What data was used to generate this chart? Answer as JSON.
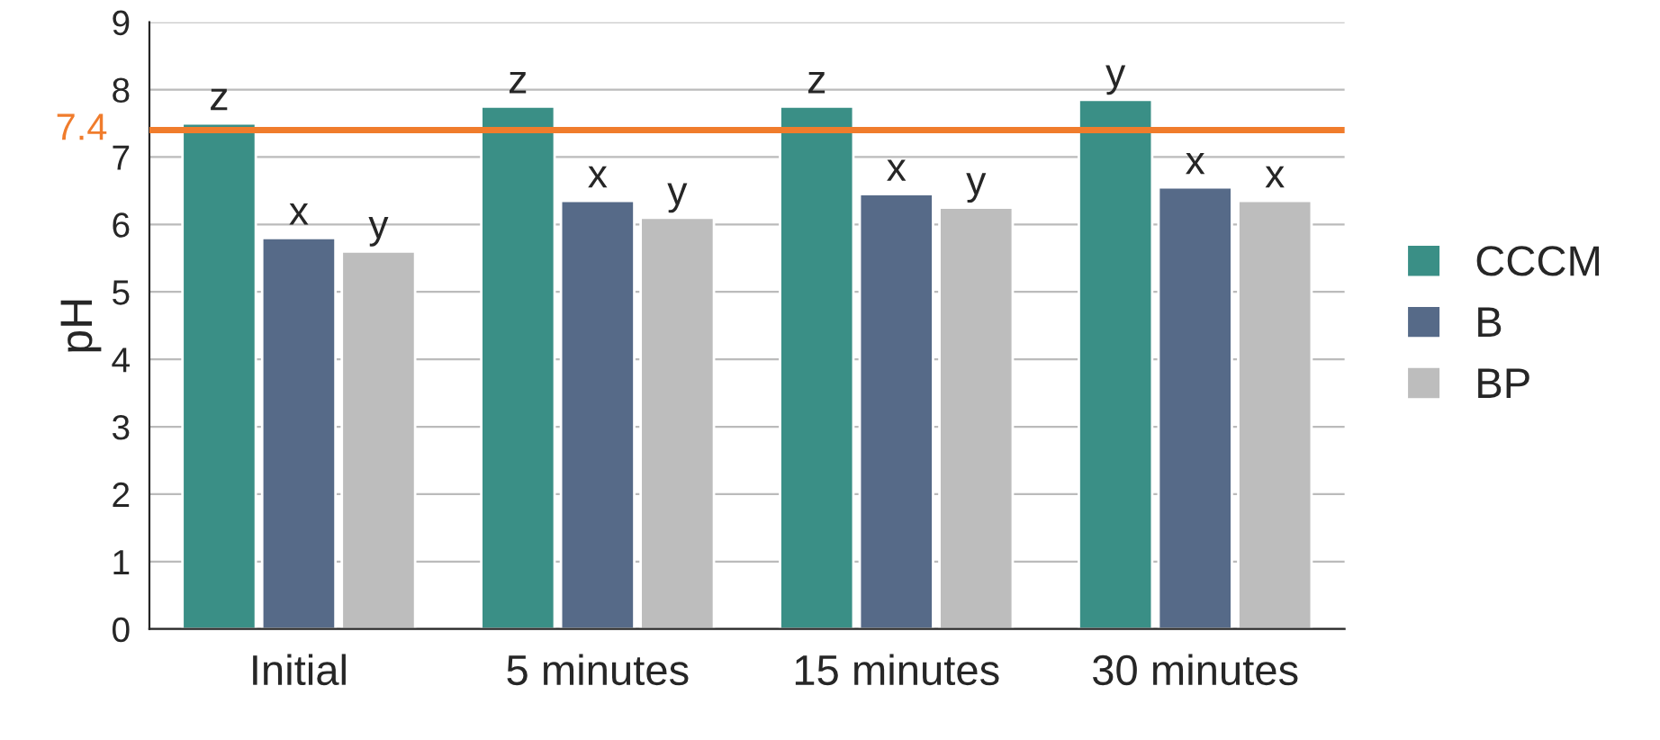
{
  "chart_data": {
    "type": "bar",
    "ylabel": "pH",
    "categories": [
      "Initial",
      "5 minutes",
      "15 minutes",
      "30 minutes"
    ],
    "series": [
      {
        "name": "CCCM",
        "color": "#3a8f86",
        "values": [
          7.5,
          7.75,
          7.75,
          7.85
        ],
        "value_labels": [
          "z",
          "z",
          "z",
          "y"
        ]
      },
      {
        "name": "B",
        "color": "#566a88",
        "values": [
          5.8,
          6.35,
          6.45,
          6.55
        ],
        "value_labels": [
          "x",
          "x",
          "x",
          "x"
        ]
      },
      {
        "name": "BP",
        "color": "#bdbdbd",
        "values": [
          5.6,
          6.1,
          6.25,
          6.35
        ],
        "value_labels": [
          "y",
          "y",
          "y",
          "x"
        ]
      }
    ],
    "ylim": [
      0,
      9
    ],
    "yticks": [
      0,
      1,
      2,
      3,
      4,
      5,
      6,
      7,
      8,
      9
    ],
    "ref_lines": [
      {
        "axis": "y",
        "value": 7.4,
        "label": "7.4",
        "color": "#f07c2c"
      }
    ],
    "grid": "y",
    "legend": "right"
  }
}
